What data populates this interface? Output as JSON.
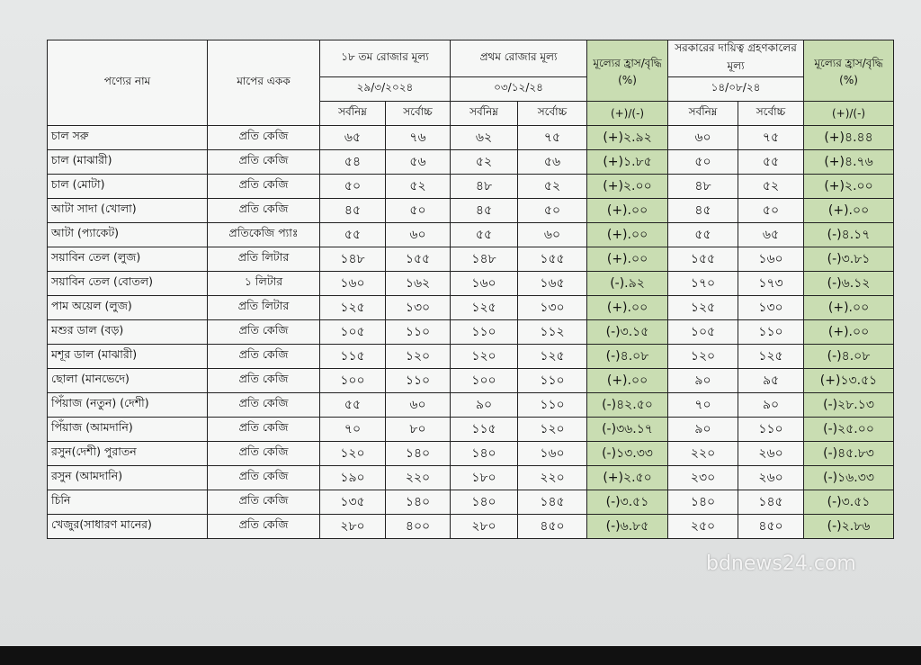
{
  "header": {
    "product": "পণ্যের নাম",
    "unit": "মাপের একক",
    "day18": {
      "title": "১৮ তম রোজার মূল্য",
      "date": "২৯/৩/২০২৪",
      "min": "সর্বনিম্ন",
      "max": "সর্বোচ্চ"
    },
    "first_day": {
      "title": "প্রথম রোজার মূল্য",
      "date": "০৩/১২/২৪",
      "min": "সর্বনিম্ন",
      "max": "সর্বোচ্চ"
    },
    "change1": {
      "title": "মূল্যের হ্রাস/বৃদ্ধি (%)",
      "sign": "(+)/(-)"
    },
    "govt": {
      "title": "সরকারের দায়িত্ব গ্রহণকালের মূল্য",
      "date": "১৪/০৮/২৪",
      "min": "সর্বনিম্ন",
      "max": "সর্বোচ্চ"
    },
    "change2": {
      "title": "মূল্যের হ্রাস/বৃদ্ধি (%)",
      "sign": "(+)/(-)"
    }
  },
  "table": {
    "rows": [
      [
        "চাল সরু",
        "প্রতি কেজি",
        "৬৫",
        "৭৬",
        "৬২",
        "৭৫",
        "(+)২.৯২",
        "৬০",
        "৭৫",
        "(+)৪.৪৪"
      ],
      [
        "চাল (মাঝারী)",
        "প্রতি কেজি",
        "৫৪",
        "৫৬",
        "৫২",
        "৫৬",
        "(+)১.৮৫",
        "৫০",
        "৫৫",
        "(+)৪.৭৬"
      ],
      [
        "চাল (মোটা)",
        "প্রতি কেজি",
        "৫০",
        "৫২",
        "৪৮",
        "৫২",
        "(+)২.০০",
        "৪৮",
        "৫২",
        "(+)২.০০"
      ],
      [
        "আটা সাদা (খোলা)",
        "প্রতি কেজি",
        "৪৫",
        "৫০",
        "৪৫",
        "৫০",
        "(+).০০",
        "৪৫",
        "৫০",
        "(+).০০"
      ],
      [
        "আটা (প্যাকেট)",
        "প্রতিকেজি প্যাঃ",
        "৫৫",
        "৬০",
        "৫৫",
        "৬০",
        "(+).০০",
        "৫৫",
        "৬৫",
        "(-)৪.১৭"
      ],
      [
        "সয়াবিন তেল (লুজ)",
        "প্রতি লিটার",
        "১৪৮",
        "১৫৫",
        "১৪৮",
        "১৫৫",
        "(+).০০",
        "১৫৫",
        "১৬০",
        "(-)৩.৮১"
      ],
      [
        "সয়াবিন তেল (বোতল)",
        "১ লিটার",
        "১৬০",
        "১৬২",
        "১৬০",
        "১৬৫",
        "(-).৯২",
        "১৭০",
        "১৭৩",
        "(-)৬.১২"
      ],
      [
        "পাম অয়েল (লুজ)",
        "প্রতি লিটার",
        "১২৫",
        "১৩০",
        "১২৫",
        "১৩০",
        "(+).০০",
        "১২৫",
        "১৩০",
        "(+).০০"
      ],
      [
        "মশুর ডাল (বড়)",
        "প্রতি কেজি",
        "১০৫",
        "১১০",
        "১১০",
        "১১২",
        "(-)৩.১৫",
        "১০৫",
        "১১০",
        "(+).০০"
      ],
      [
        "মশূর ডাল (মাঝারী)",
        "প্রতি কেজি",
        "১১৫",
        "১২০",
        "১২০",
        "১২৫",
        "(-)৪.০৮",
        "১২০",
        "১২৫",
        "(-)৪.০৮"
      ],
      [
        "ছোলা (মানভেদে)",
        "প্রতি কেজি",
        "১০০",
        "১১০",
        "১০০",
        "১১০",
        "(+).০০",
        "৯০",
        "৯৫",
        "(+)১৩.৫১"
      ],
      [
        "পিঁয়াজ (নতুন) (দেশী)",
        "প্রতি কেজি",
        "৫৫",
        "৬০",
        "৯০",
        "১১০",
        "(-)৪২.৫০",
        "৭০",
        "৯০",
        "(-)২৮.১৩"
      ],
      [
        "পিঁয়াজ (আমদানি)",
        "প্রতি কেজি",
        "৭০",
        "৮০",
        "১১৫",
        "১২০",
        "(-)৩৬.১৭",
        "৯০",
        "১১০",
        "(-)২৫.০০"
      ],
      [
        "রসুন(দেশী) পুরাতন",
        "প্রতি কেজি",
        "১২০",
        "১৪০",
        "১৪০",
        "১৬০",
        "(-)১৩.৩৩",
        "২২০",
        "২৬০",
        "(-)৪৫.৮৩"
      ],
      [
        "রসুন (আমদানি)",
        "প্রতি কেজি",
        "১৯০",
        "২২০",
        "১৮০",
        "২২০",
        "(+)২.৫০",
        "২৩০",
        "২৬০",
        "(-)১৬.৩৩"
      ],
      [
        "চিনি",
        "প্রতি কেজি",
        "১৩৫",
        "১৪০",
        "১৪০",
        "১৪৫",
        "(-)৩.৫১",
        "১৪০",
        "১৪৫",
        "(-)৩.৫১"
      ],
      [
        "খেজুর(সাধারণ মানের)",
        "প্রতি কেজি",
        "২৮০",
        "৪০০",
        "২৮০",
        "৪৫০",
        "(-)৬.৮৫",
        "২৫০",
        "৪৫০",
        "(-)২.৮৬"
      ]
    ]
  },
  "watermark": "bdnews24.com"
}
